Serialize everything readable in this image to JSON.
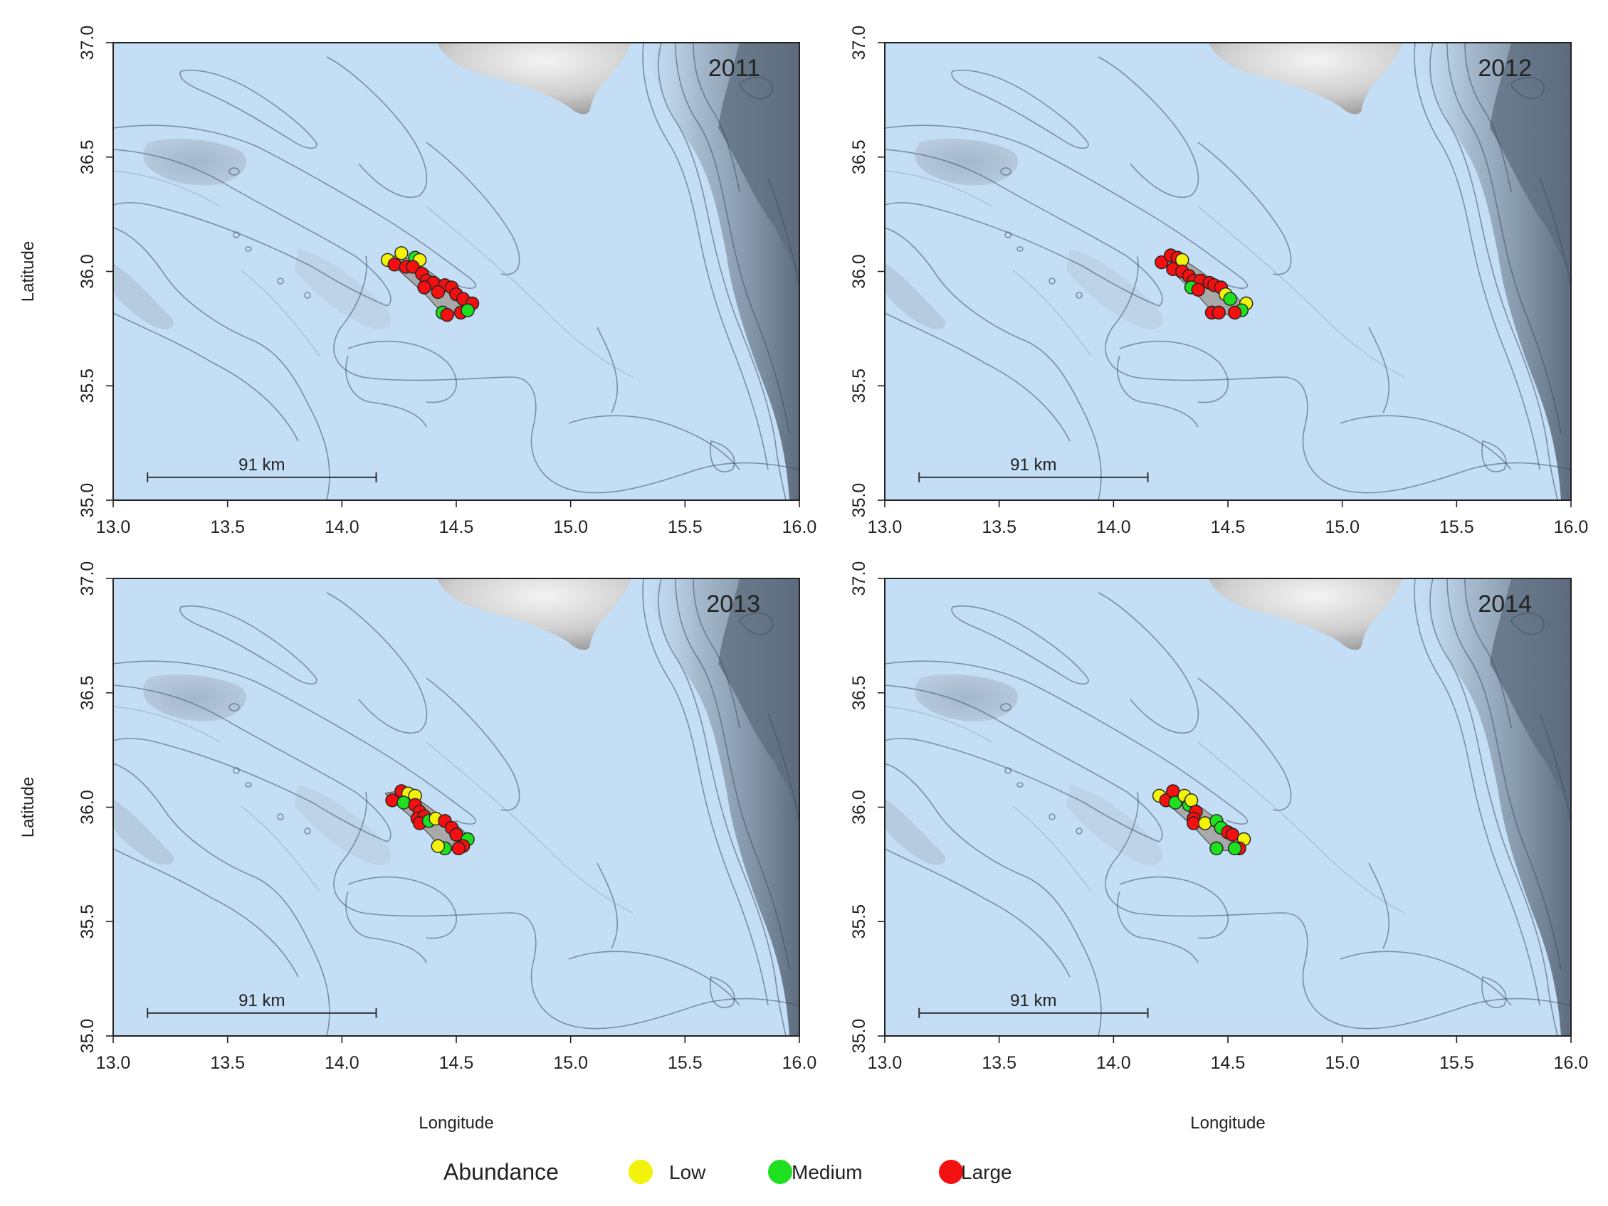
{
  "figure": {
    "xlabel": "Longitude",
    "ylabel": "Latitude",
    "xlim": [
      13.0,
      16.0
    ],
    "ylim": [
      35.0,
      37.0
    ],
    "x_ticks": [
      "13.0",
      "13.5",
      "14.0",
      "14.5",
      "15.0",
      "15.5",
      "16.0"
    ],
    "y_ticks": [
      "35.0",
      "35.5",
      "36.0",
      "36.5",
      "37.0"
    ],
    "scale_bar": {
      "label": "91 km",
      "lon_start": 13.15,
      "lon_end": 14.15,
      "lat": 35.1
    },
    "colors": {
      "sea": "#c4def6",
      "contour": "#3e4f63",
      "land_light": "#d6d6d6",
      "slope_dark": "#66778a",
      "low": "#f2f20a",
      "medium": "#1ee01e",
      "large": "#f21010"
    }
  },
  "panels": [
    {
      "year": "2011",
      "points": [
        {
          "lon": 14.2,
          "lat": 36.05,
          "a": "low"
        },
        {
          "lon": 14.26,
          "lat": 36.08,
          "a": "low"
        },
        {
          "lon": 14.32,
          "lat": 36.06,
          "a": "medium"
        },
        {
          "lon": 14.34,
          "lat": 36.05,
          "a": "low"
        },
        {
          "lon": 14.23,
          "lat": 36.03,
          "a": "large"
        },
        {
          "lon": 14.28,
          "lat": 36.02,
          "a": "large"
        },
        {
          "lon": 14.31,
          "lat": 36.02,
          "a": "large"
        },
        {
          "lon": 14.35,
          "lat": 35.99,
          "a": "large"
        },
        {
          "lon": 14.37,
          "lat": 35.96,
          "a": "large"
        },
        {
          "lon": 14.4,
          "lat": 35.95,
          "a": "large"
        },
        {
          "lon": 14.45,
          "lat": 35.94,
          "a": "large"
        },
        {
          "lon": 14.48,
          "lat": 35.93,
          "a": "large"
        },
        {
          "lon": 14.5,
          "lat": 35.9,
          "a": "large"
        },
        {
          "lon": 14.53,
          "lat": 35.88,
          "a": "large"
        },
        {
          "lon": 14.57,
          "lat": 35.86,
          "a": "large"
        },
        {
          "lon": 14.36,
          "lat": 35.93,
          "a": "large"
        },
        {
          "lon": 14.42,
          "lat": 35.91,
          "a": "large"
        },
        {
          "lon": 14.44,
          "lat": 35.82,
          "a": "medium"
        },
        {
          "lon": 14.46,
          "lat": 35.81,
          "a": "large"
        },
        {
          "lon": 14.52,
          "lat": 35.82,
          "a": "large"
        },
        {
          "lon": 14.55,
          "lat": 35.83,
          "a": "medium"
        }
      ]
    },
    {
      "year": "2012",
      "points": [
        {
          "lon": 14.21,
          "lat": 36.04,
          "a": "large"
        },
        {
          "lon": 14.25,
          "lat": 36.07,
          "a": "large"
        },
        {
          "lon": 14.28,
          "lat": 36.06,
          "a": "large"
        },
        {
          "lon": 14.3,
          "lat": 36.05,
          "a": "low"
        },
        {
          "lon": 14.26,
          "lat": 36.01,
          "a": "large"
        },
        {
          "lon": 14.3,
          "lat": 36.0,
          "a": "large"
        },
        {
          "lon": 14.33,
          "lat": 35.98,
          "a": "large"
        },
        {
          "lon": 14.35,
          "lat": 35.96,
          "a": "large"
        },
        {
          "lon": 14.38,
          "lat": 35.96,
          "a": "large"
        },
        {
          "lon": 14.34,
          "lat": 35.93,
          "a": "medium"
        },
        {
          "lon": 14.37,
          "lat": 35.92,
          "a": "large"
        },
        {
          "lon": 14.42,
          "lat": 35.95,
          "a": "large"
        },
        {
          "lon": 14.44,
          "lat": 35.94,
          "a": "large"
        },
        {
          "lon": 14.47,
          "lat": 35.93,
          "a": "large"
        },
        {
          "lon": 14.49,
          "lat": 35.9,
          "a": "low"
        },
        {
          "lon": 14.51,
          "lat": 35.88,
          "a": "medium"
        },
        {
          "lon": 14.58,
          "lat": 35.86,
          "a": "low"
        },
        {
          "lon": 14.56,
          "lat": 35.83,
          "a": "medium"
        },
        {
          "lon": 14.53,
          "lat": 35.82,
          "a": "large"
        },
        {
          "lon": 14.43,
          "lat": 35.82,
          "a": "large"
        },
        {
          "lon": 14.46,
          "lat": 35.82,
          "a": "large"
        }
      ]
    },
    {
      "year": "2013",
      "points": [
        {
          "lon": 14.22,
          "lat": 36.03,
          "a": "large"
        },
        {
          "lon": 14.26,
          "lat": 36.07,
          "a": "large"
        },
        {
          "lon": 14.29,
          "lat": 36.06,
          "a": "low"
        },
        {
          "lon": 14.32,
          "lat": 36.05,
          "a": "low"
        },
        {
          "lon": 14.27,
          "lat": 36.02,
          "a": "medium"
        },
        {
          "lon": 14.32,
          "lat": 36.01,
          "a": "large"
        },
        {
          "lon": 14.34,
          "lat": 35.98,
          "a": "large"
        },
        {
          "lon": 14.33,
          "lat": 35.95,
          "a": "large"
        },
        {
          "lon": 14.36,
          "lat": 35.96,
          "a": "large"
        },
        {
          "lon": 14.34,
          "lat": 35.93,
          "a": "large"
        },
        {
          "lon": 14.38,
          "lat": 35.94,
          "a": "medium"
        },
        {
          "lon": 14.41,
          "lat": 35.95,
          "a": "low"
        },
        {
          "lon": 14.45,
          "lat": 35.94,
          "a": "large"
        },
        {
          "lon": 14.48,
          "lat": 35.91,
          "a": "large"
        },
        {
          "lon": 14.5,
          "lat": 35.88,
          "a": "large"
        },
        {
          "lon": 14.55,
          "lat": 35.86,
          "a": "medium"
        },
        {
          "lon": 14.53,
          "lat": 35.83,
          "a": "large"
        },
        {
          "lon": 14.51,
          "lat": 35.82,
          "a": "large"
        },
        {
          "lon": 14.45,
          "lat": 35.82,
          "a": "medium"
        },
        {
          "lon": 14.42,
          "lat": 35.83,
          "a": "low"
        }
      ]
    },
    {
      "year": "2014",
      "points": [
        {
          "lon": 14.2,
          "lat": 36.05,
          "a": "low"
        },
        {
          "lon": 14.23,
          "lat": 36.03,
          "a": "large"
        },
        {
          "lon": 14.26,
          "lat": 36.07,
          "a": "large"
        },
        {
          "lon": 14.27,
          "lat": 36.02,
          "a": "medium"
        },
        {
          "lon": 14.31,
          "lat": 36.05,
          "a": "low"
        },
        {
          "lon": 14.33,
          "lat": 36.01,
          "a": "medium"
        },
        {
          "lon": 14.34,
          "lat": 36.03,
          "a": "low"
        },
        {
          "lon": 14.36,
          "lat": 35.98,
          "a": "large"
        },
        {
          "lon": 14.35,
          "lat": 35.95,
          "a": "large"
        },
        {
          "lon": 14.35,
          "lat": 35.93,
          "a": "large"
        },
        {
          "lon": 14.4,
          "lat": 35.93,
          "a": "low"
        },
        {
          "lon": 14.45,
          "lat": 35.94,
          "a": "medium"
        },
        {
          "lon": 14.47,
          "lat": 35.91,
          "a": "medium"
        },
        {
          "lon": 14.5,
          "lat": 35.89,
          "a": "large"
        },
        {
          "lon": 14.52,
          "lat": 35.88,
          "a": "large"
        },
        {
          "lon": 14.57,
          "lat": 35.86,
          "a": "low"
        },
        {
          "lon": 14.55,
          "lat": 35.82,
          "a": "large"
        },
        {
          "lon": 14.53,
          "lat": 35.82,
          "a": "medium"
        },
        {
          "lon": 14.45,
          "lat": 35.82,
          "a": "medium"
        }
      ]
    }
  ],
  "legend": {
    "title": "Abundance",
    "items": [
      {
        "key": "low",
        "label": "Low"
      },
      {
        "key": "medium",
        "label": "Medium"
      },
      {
        "key": "large",
        "label": "Large"
      }
    ]
  }
}
